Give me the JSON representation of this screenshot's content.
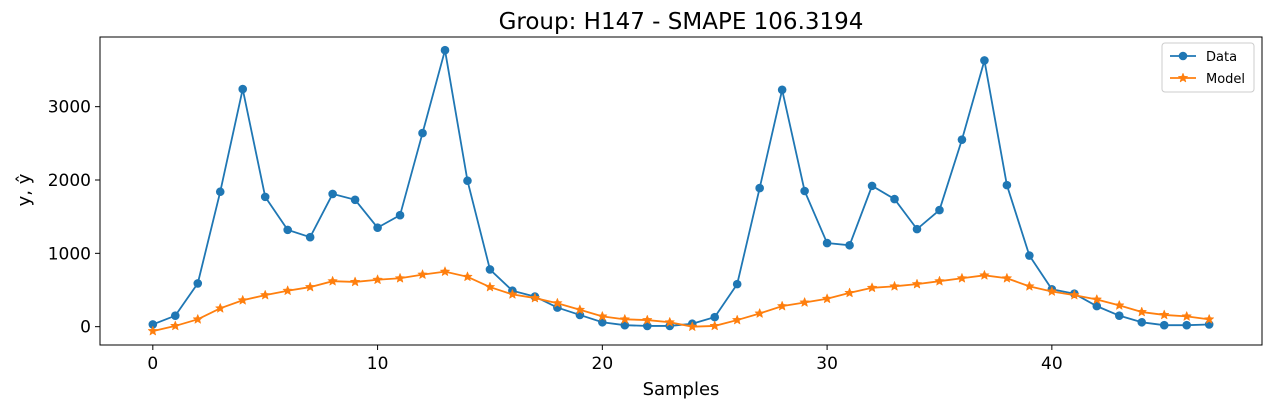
{
  "chart_data": {
    "type": "line",
    "title": "Group: H147 - SMAPE 106.3194",
    "xlabel": "Samples",
    "ylabel": "y, ŷ",
    "xlim": [
      -2.35,
      49.35
    ],
    "ylim": [
      -250,
      3950
    ],
    "x_ticks": [
      0,
      10,
      20,
      30,
      40
    ],
    "y_ticks": [
      0,
      1000,
      2000,
      3000
    ],
    "grid": false,
    "legend_position": "top-right",
    "series": [
      {
        "name": "Data",
        "color": "#1f77b4",
        "marker": "circle",
        "values": [
          30,
          150,
          590,
          1840,
          3240,
          1770,
          1320,
          1220,
          1810,
          1730,
          1350,
          1520,
          2640,
          3770,
          1990,
          780,
          490,
          410,
          260,
          160,
          60,
          20,
          10,
          10,
          40,
          130,
          580,
          1890,
          3230,
          1850,
          1140,
          1110,
          1920,
          1740,
          1330,
          1590,
          2550,
          3630,
          1930,
          970,
          510,
          450,
          280,
          150,
          60,
          20,
          20,
          30
        ]
      },
      {
        "name": "Model",
        "color": "#ff7f0e",
        "marker": "star",
        "values": [
          -60,
          10,
          100,
          250,
          360,
          430,
          490,
          540,
          620,
          610,
          640,
          660,
          710,
          750,
          680,
          540,
          440,
          390,
          320,
          230,
          140,
          100,
          90,
          60,
          0,
          10,
          90,
          180,
          280,
          330,
          380,
          460,
          530,
          550,
          580,
          620,
          660,
          700,
          660,
          550,
          480,
          430,
          370,
          290,
          200,
          160,
          140,
          100
        ]
      }
    ]
  }
}
